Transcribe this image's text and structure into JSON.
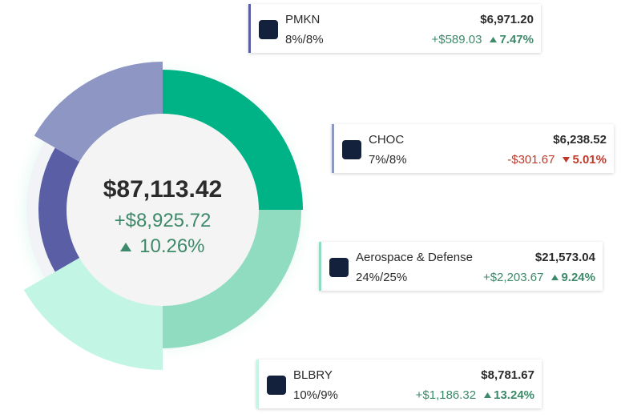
{
  "summary": {
    "total": "$87,113.42",
    "change": "+$8,925.72",
    "change_pct": "10.26%"
  },
  "holdings": [
    {
      "ticker": "PMKN",
      "allocation": "8%/8%",
      "value": "$6,971.20",
      "change": "+$589.03",
      "change_pct": "7.47%"
    },
    {
      "ticker": "CHOC",
      "allocation": "7%/8%",
      "value": "$6,238.52",
      "change": "-$301.67",
      "change_pct": "5.01%"
    },
    {
      "ticker": "Aerospace & Defense",
      "allocation": "24%/25%",
      "value": "$21,573.04",
      "change": "+$2,203.67",
      "change_pct": "9.24%"
    },
    {
      "ticker": "BLBRY",
      "allocation": "10%/9%",
      "value": "$8,781.67",
      "change": "+$1,186.32",
      "change_pct": "13.24%"
    }
  ]
}
